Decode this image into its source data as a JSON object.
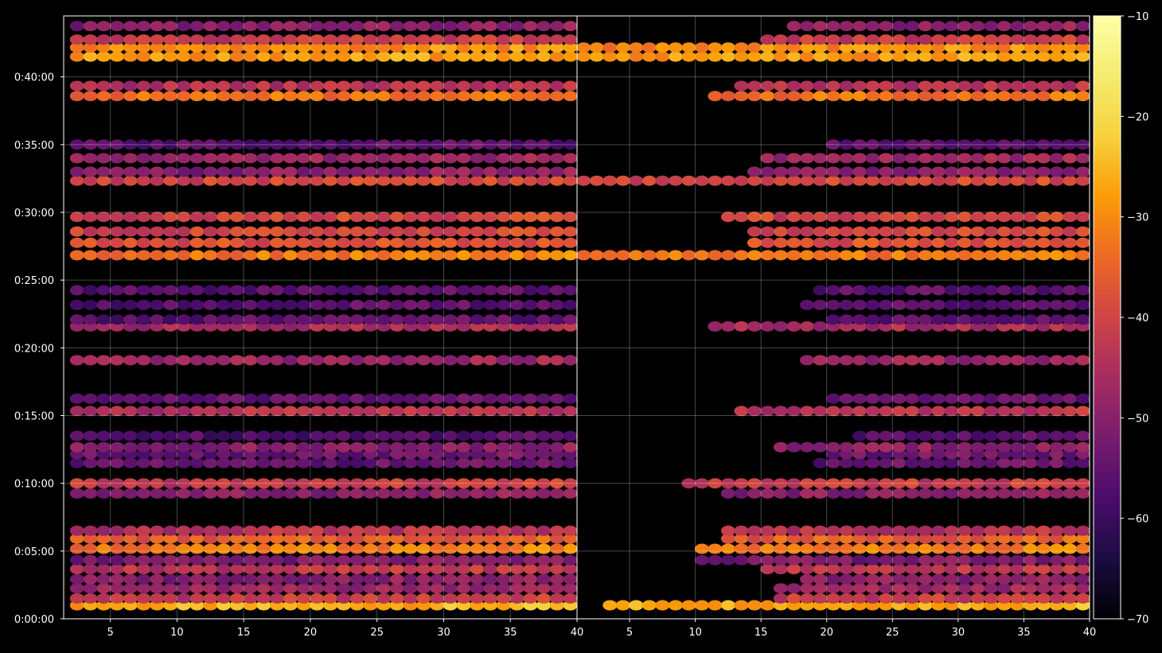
{
  "chart_data": {
    "type": "heatmap",
    "title": "",
    "colormap": "inferno",
    "background": "#000000",
    "grid": true,
    "panels": [
      {
        "name": "left",
        "xlim": [
          1.5,
          40
        ],
        "ylim_seconds": [
          0,
          2670
        ],
        "x_ticks": [
          5,
          10,
          15,
          20,
          25,
          30,
          35,
          40
        ],
        "x_tick_labels": [
          "5",
          "10",
          "15",
          "20",
          "25",
          "30",
          "35",
          "40"
        ]
      },
      {
        "name": "right",
        "xlim": [
          1,
          40
        ],
        "ylim_seconds": [
          0,
          2670
        ],
        "x_ticks": [
          5,
          10,
          15,
          20,
          25,
          30,
          35,
          40
        ],
        "x_tick_labels": [
          "5",
          "10",
          "15",
          "20",
          "25",
          "30",
          "35",
          "40"
        ]
      }
    ],
    "y_ticks_seconds": [
      0,
      300,
      600,
      900,
      1200,
      1500,
      1800,
      2100,
      2400
    ],
    "y_tick_labels": [
      "0:00:00",
      "0:05:00",
      "0:10:00",
      "0:15:00",
      "0:20:00",
      "0:25:00",
      "0:30:00",
      "0:35:00",
      "0:40:00"
    ],
    "colorbar": {
      "range": [
        -70,
        -10
      ],
      "ticks": [
        -70,
        -60,
        -50,
        -40,
        -30,
        -20,
        -10
      ],
      "tick_labels": [
        "−70",
        "−60",
        "−50",
        "−40",
        "−30",
        "−20",
        "−10"
      ]
    },
    "bands": [
      {
        "t": 60,
        "v": -26,
        "onset": 3
      },
      {
        "t": 90,
        "v": -42,
        "onset": 16
      },
      {
        "t": 135,
        "v": -48,
        "onset": 16
      },
      {
        "t": 175,
        "v": -50,
        "onset": 18
      },
      {
        "t": 220,
        "v": -43,
        "onset": 15
      },
      {
        "t": 260,
        "v": -52,
        "onset": 10
      },
      {
        "t": 310,
        "v": -32,
        "onset": 10
      },
      {
        "t": 355,
        "v": -36,
        "onset": 12
      },
      {
        "t": 390,
        "v": -44,
        "onset": 12
      },
      {
        "t": 555,
        "v": -50,
        "onset": 12
      },
      {
        "t": 600,
        "v": -42,
        "onset": 9
      },
      {
        "t": 690,
        "v": -55,
        "onset": 19
      },
      {
        "t": 730,
        "v": -54,
        "onset": 20
      },
      {
        "t": 760,
        "v": -50,
        "onset": 16
      },
      {
        "t": 810,
        "v": -57,
        "onset": 22
      },
      {
        "t": 920,
        "v": -44,
        "onset": 13
      },
      {
        "t": 975,
        "v": -55,
        "onset": 20
      },
      {
        "t": 1145,
        "v": -48,
        "onset": 18
      },
      {
        "t": 1295,
        "v": -46,
        "onset": 11
      },
      {
        "t": 1325,
        "v": -56,
        "onset": 20
      },
      {
        "t": 1390,
        "v": -56,
        "onset": 18
      },
      {
        "t": 1455,
        "v": -56,
        "onset": 19
      },
      {
        "t": 1610,
        "v": -32,
        "onset": 1
      },
      {
        "t": 1665,
        "v": -38,
        "onset": 14
      },
      {
        "t": 1715,
        "v": -40,
        "onset": 14
      },
      {
        "t": 1780,
        "v": -40,
        "onset": 12
      },
      {
        "t": 1940,
        "v": -40,
        "onset": 1
      },
      {
        "t": 1980,
        "v": -50,
        "onset": 14
      },
      {
        "t": 2040,
        "v": -48,
        "onset": 15
      },
      {
        "t": 2100,
        "v": -56,
        "onset": 20
      },
      {
        "t": 2315,
        "v": -33,
        "onset": 11
      },
      {
        "t": 2360,
        "v": -44,
        "onset": 13
      },
      {
        "t": 2490,
        "v": -28,
        "onset": 1
      },
      {
        "t": 2530,
        "v": -30,
        "onset": 1
      },
      {
        "t": 2565,
        "v": -42,
        "onset": 15
      },
      {
        "t": 2625,
        "v": -50,
        "onset": 17
      }
    ]
  }
}
